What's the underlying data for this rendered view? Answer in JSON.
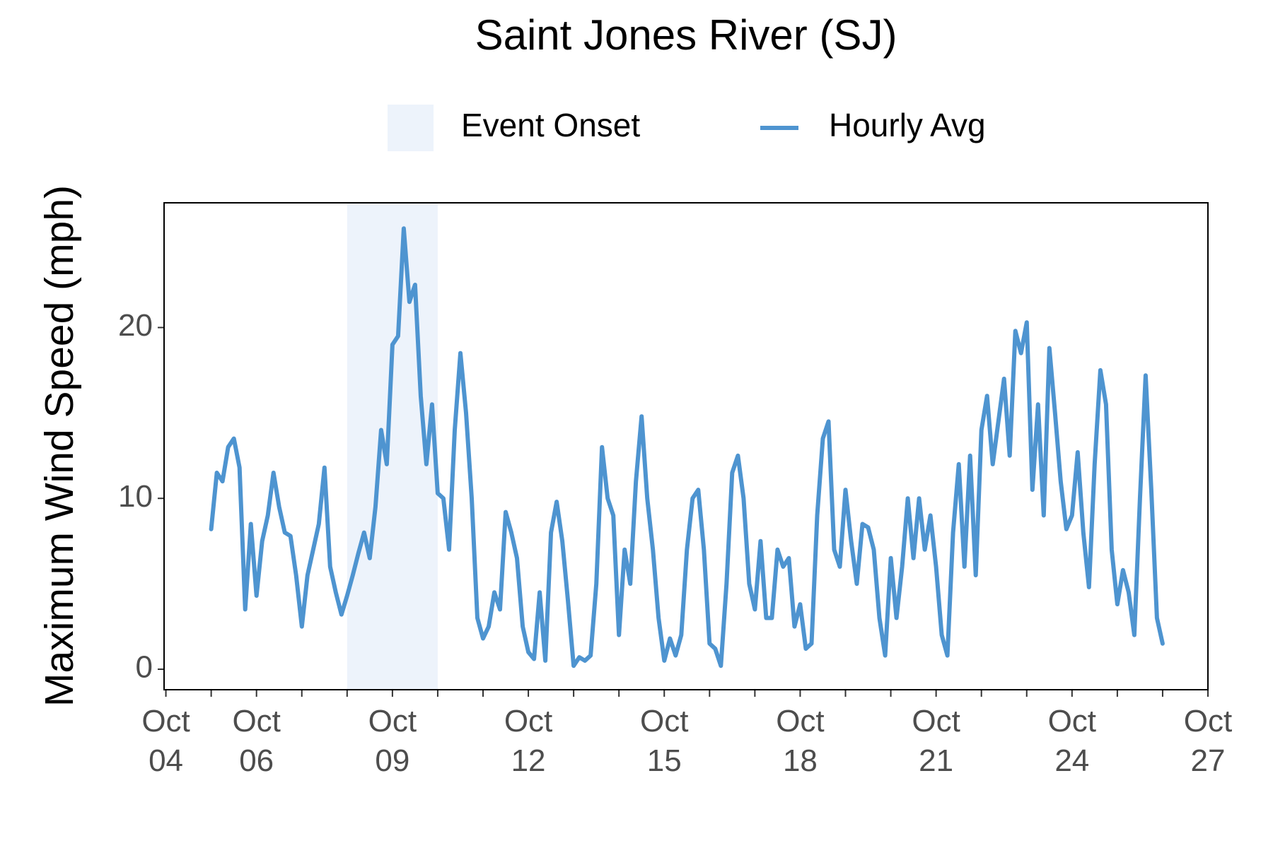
{
  "chart_data": {
    "type": "line",
    "title": "Saint Jones River (SJ)",
    "y_label": "Maximum Wind Speed (mph)",
    "xlim": [
      3.96,
      27
    ],
    "ylim": [
      -1.2,
      27.3
    ],
    "yticks": [
      0,
      10,
      20
    ],
    "xticks": [
      {
        "value": 4,
        "label": "Oct\n04"
      },
      {
        "value": 5,
        "label": null
      },
      {
        "value": 6,
        "label": "Oct\n06"
      },
      {
        "value": 7,
        "label": null
      },
      {
        "value": 8,
        "label": null
      },
      {
        "value": 9,
        "label": "Oct\n09"
      },
      {
        "value": 10,
        "label": null
      },
      {
        "value": 11,
        "label": null
      },
      {
        "value": 12,
        "label": "Oct\n12"
      },
      {
        "value": 13,
        "label": null
      },
      {
        "value": 14,
        "label": null
      },
      {
        "value": 15,
        "label": "Oct\n15"
      },
      {
        "value": 16,
        "label": null
      },
      {
        "value": 17,
        "label": null
      },
      {
        "value": 18,
        "label": "Oct\n18"
      },
      {
        "value": 19,
        "label": null
      },
      {
        "value": 20,
        "label": null
      },
      {
        "value": 21,
        "label": "Oct\n21"
      },
      {
        "value": 22,
        "label": null
      },
      {
        "value": 23,
        "label": null
      },
      {
        "value": 24,
        "label": "Oct\n24"
      },
      {
        "value": 25,
        "label": null
      },
      {
        "value": 26,
        "label": null
      },
      {
        "value": 27,
        "label": "Oct\n27"
      }
    ],
    "grid": false,
    "legend": "top",
    "shaded_regions": [
      {
        "name": "Event Onset",
        "color": "#edf3fb",
        "x": [
          8,
          10
        ]
      }
    ],
    "x": [
      5,
      5.125,
      5.25,
      5.375,
      5.5,
      5.625,
      5.75,
      5.875,
      6,
      6.125,
      6.25,
      6.375,
      6.5,
      6.625,
      6.75,
      6.875,
      7,
      7.125,
      7.25,
      7.375,
      7.5,
      7.625,
      7.75,
      7.875,
      8,
      8.125,
      8.25,
      8.375,
      8.5,
      8.625,
      8.75,
      8.875,
      9,
      9.125,
      9.25,
      9.375,
      9.5,
      9.625,
      9.75,
      9.875,
      10,
      10.125,
      10.25,
      10.375,
      10.5,
      10.625,
      10.75,
      10.875,
      11,
      11.125,
      11.25,
      11.375,
      11.5,
      11.625,
      11.75,
      11.875,
      12,
      12.125,
      12.25,
      12.375,
      12.5,
      12.625,
      12.75,
      12.875,
      13,
      13.125,
      13.25,
      13.375,
      13.5,
      13.625,
      13.75,
      13.875,
      14,
      14.125,
      14.25,
      14.375,
      14.5,
      14.625,
      14.75,
      14.875,
      15,
      15.125,
      15.25,
      15.375,
      15.5,
      15.625,
      15.75,
      15.875,
      16,
      16.125,
      16.25,
      16.375,
      16.5,
      16.625,
      16.75,
      16.875,
      17,
      17.125,
      17.25,
      17.375,
      17.5,
      17.625,
      17.75,
      17.875,
      18,
      18.125,
      18.25,
      18.375,
      18.5,
      18.625,
      18.75,
      18.875,
      19,
      19.125,
      19.25,
      19.375,
      19.5,
      19.625,
      19.75,
      19.875,
      20,
      20.125,
      20.25,
      20.375,
      20.5,
      20.625,
      20.75,
      20.875,
      21,
      21.125,
      21.25,
      21.375,
      21.5,
      21.625,
      21.75,
      21.875,
      22,
      22.125,
      22.25,
      22.375,
      22.5,
      22.625,
      22.75,
      22.875,
      23,
      23.125,
      23.25,
      23.375,
      23.5,
      23.625,
      23.75,
      23.875,
      24,
      24.125,
      24.25,
      24.375,
      24.5,
      24.625,
      24.75,
      24.875,
      25,
      25.125,
      25.25,
      25.375,
      25.5,
      25.625,
      25.75,
      25.875,
      26
    ],
    "series": [
      {
        "name": "Hourly Avg",
        "color": "#4e94d0",
        "values": [
          8.2,
          11.5,
          11,
          13,
          13.5,
          11.8,
          3.5,
          8.5,
          4.3,
          7.5,
          9,
          11.5,
          9.5,
          8,
          7.8,
          5.5,
          2.5,
          5.5,
          7,
          8.5,
          11.8,
          6,
          4.5,
          3.2,
          4.3,
          5.5,
          6.8,
          8,
          6.5,
          9.5,
          14,
          12,
          19,
          19.5,
          25.8,
          21.5,
          22.5,
          16,
          12,
          15.5,
          10.3,
          10,
          7,
          14,
          18.5,
          15,
          10,
          3,
          1.8,
          2.5,
          4.5,
          3.5,
          9.2,
          8,
          6.5,
          2.5,
          1,
          0.6,
          4.5,
          0.5,
          8,
          9.8,
          7.5,
          4,
          0.2,
          0.7,
          0.5,
          0.8,
          5,
          13,
          10,
          9,
          2,
          7,
          5,
          11,
          14.8,
          10,
          7,
          3,
          0.5,
          1.8,
          0.8,
          2,
          7,
          10,
          10.5,
          7,
          1.5,
          1.2,
          0.2,
          5,
          11.5,
          12.5,
          10,
          5,
          3.5,
          7.5,
          3,
          3,
          7,
          6,
          6.5,
          2.5,
          3.8,
          1.2,
          1.5,
          9,
          13.5,
          14.5,
          7,
          6,
          10.5,
          7.5,
          5,
          8.5,
          8.3,
          7,
          3,
          0.8,
          6.5,
          3,
          6,
          10,
          6.5,
          10,
          7,
          9,
          6,
          2,
          0.8,
          8,
          12,
          6,
          12.5,
          5.5,
          14,
          16,
          12,
          14.5,
          17,
          12.5,
          19.8,
          18.5,
          20.3,
          10.5,
          15.5,
          9,
          18.8,
          15,
          11,
          8.2,
          9,
          12.7,
          8,
          4.8,
          12,
          17.5,
          15.5,
          7,
          3.8,
          5.8,
          4.5,
          2,
          10,
          17.2,
          10.5,
          3,
          1.5
        ]
      }
    ]
  }
}
